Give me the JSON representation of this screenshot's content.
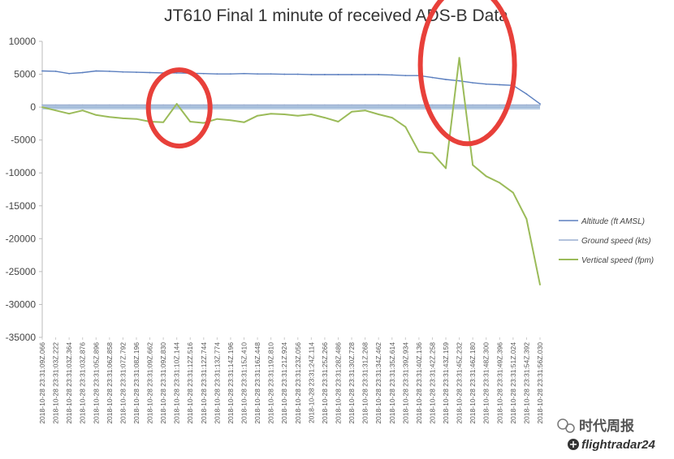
{
  "chart_data": {
    "type": "line",
    "title": "JT610 Final 1 minute of received ADS-B Data",
    "ylim": [
      -35000,
      10000
    ],
    "y_ticks": [
      10000,
      5000,
      0,
      -5000,
      -10000,
      -15000,
      -20000,
      -25000,
      -30000,
      -35000
    ],
    "grid": false,
    "legend_position": "right",
    "categories": [
      "2018-10-28 23:31:09Z.066",
      "2018-10-28 23:31:03Z.222",
      "2018-10-28 23:31:03Z.364",
      "2018-10-28 23:31:03Z.876",
      "2018-10-28 23:31:05Z.896",
      "2018-10-28 23:31:06Z.858",
      "2018-10-28 23:31:07Z.792",
      "2018-10-28 23:31:08Z.196",
      "2018-10-28 23:31:09Z.662",
      "2018-10-28 23:31:09Z.830",
      "2018-10-28 23:31:10Z.144",
      "2018-10-28 23:31:12Z.516",
      "2018-10-28 23:31:12Z.744",
      "2018-10-28 23:31:13Z.774",
      "2018-10-28 23:31:14Z.196",
      "2018-10-28 23:31:15Z.410",
      "2018-10-28 23:31:16Z.448",
      "2018-10-28 23:31:19Z.810",
      "2018-10-28 23:31:21Z.924",
      "2018-10-28 23:31:23Z.056",
      "2018-10-28 23:31:24Z.114",
      "2018-10-28 23:31:25Z.266",
      "2018-10-28 23:31:28Z.486",
      "2018-10-28 23:31:30Z.728",
      "2018-10-28 23:31:31Z.268",
      "2018-10-28 23:31:34Z.462",
      "2018-10-28 23:31:35Z.614",
      "2018-10-28 23:31:39Z.934",
      "2018-10-28 23:31:40Z.136",
      "2018-10-28 23:31:42Z.258",
      "2018-10-28 23:31:43Z.159",
      "2018-10-28 23:31:45Z.232",
      "2018-10-28 23:31:46Z.180",
      "2018-10-28 23:31:48Z.300",
      "2018-10-28 23:31:49Z.396",
      "2018-10-28 23:31:51Z.024",
      "2018-10-28 23:31:54Z.392",
      "2018-10-28 23:31:56Z.030"
    ],
    "series": [
      {
        "name": "Altitude (ft AMSL)",
        "color": "#5b7fbf",
        "values": [
          5500,
          5450,
          5100,
          5250,
          5500,
          5450,
          5350,
          5300,
          5250,
          5200,
          5200,
          5150,
          5100,
          5050,
          5050,
          5100,
          5050,
          5050,
          5000,
          5000,
          4950,
          4950,
          4950,
          4950,
          4950,
          4950,
          4900,
          4800,
          4800,
          4500,
          4200,
          4000,
          3700,
          3500,
          3400,
          3300,
          2000,
          500
        ]
      },
      {
        "name": "Ground speed (kts)",
        "color": "#9aaed0",
        "values": [
          320,
          320,
          320,
          320,
          320,
          320,
          320,
          320,
          320,
          320,
          320,
          320,
          320,
          320,
          320,
          320,
          320,
          320,
          320,
          320,
          320,
          320,
          320,
          320,
          320,
          320,
          320,
          320,
          320,
          320,
          320,
          320,
          320,
          320,
          320,
          320,
          320,
          320
        ]
      },
      {
        "name": "Vertical speed (fpm)",
        "color": "#9bbb59",
        "values": [
          0,
          -500,
          -1000,
          -500,
          -1200,
          -1500,
          -1700,
          -1800,
          -2200,
          -2300,
          500,
          -2200,
          -2400,
          -1800,
          -2000,
          -2300,
          -1300,
          -1000,
          -1100,
          -1300,
          -1100,
          -1600,
          -2200,
          -700,
          -500,
          -1100,
          -1600,
          -3000,
          -6800,
          -7000,
          -9300,
          7500,
          -8800,
          -10500,
          -11500,
          -13000,
          -17000,
          -27000
        ]
      }
    ],
    "annotations": [
      "red-circle-first-spike",
      "red-circle-second-spike"
    ]
  },
  "watermark": {
    "wechat_name": "时代周报",
    "brand": "flightradar24"
  }
}
